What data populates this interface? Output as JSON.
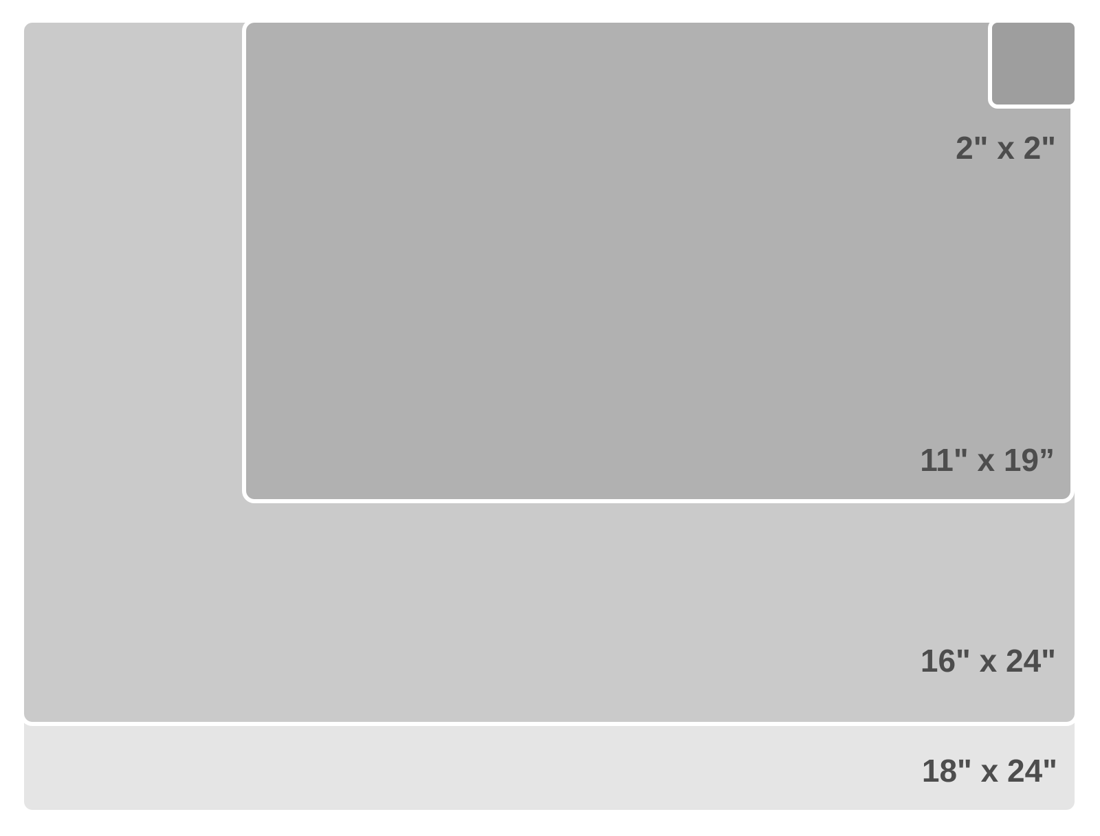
{
  "diagram": {
    "type": "size-comparison",
    "unit": "inches",
    "background_color": "#ffffff",
    "label_color": "#4d4d4d",
    "border_color": "#ffffff",
    "sizes": [
      {
        "id": "2x2",
        "label": "2\" x 2\"",
        "width_in": 2,
        "height_in": 2,
        "color": "#9e9e9e"
      },
      {
        "id": "11x19",
        "label": "11\" x 19”",
        "width_in": 19,
        "height_in": 11,
        "color": "#b1b1b1"
      },
      {
        "id": "16x24",
        "label": "16\" x 24\"",
        "width_in": 24,
        "height_in": 16,
        "color": "#cacaca"
      },
      {
        "id": "18x24",
        "label": "18\" x 24\"",
        "width_in": 24,
        "height_in": 18,
        "color": "#e5e5e5"
      }
    ]
  }
}
